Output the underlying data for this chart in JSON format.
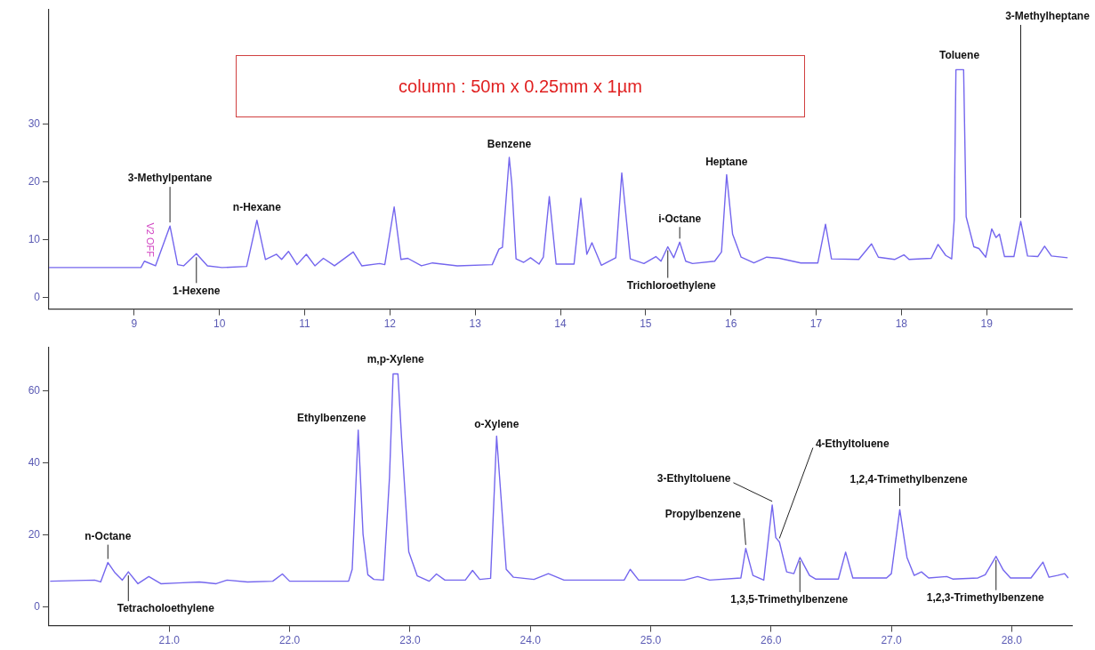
{
  "chart_data": [
    {
      "type": "line",
      "color": "#7466ee",
      "xlim": [
        8,
        20
      ],
      "ylim": [
        -2,
        50
      ],
      "xticks": [
        9,
        10,
        11,
        12,
        13,
        14,
        15,
        16,
        17,
        18,
        19
      ],
      "yticks": [
        0,
        10,
        20,
        30
      ],
      "grid": false,
      "legend": false,
      "marker": "none",
      "line_style": "solid",
      "x": [
        8.0,
        9.08,
        9.12,
        9.25,
        9.42,
        9.51,
        9.58,
        9.73,
        9.86,
        10.03,
        10.32,
        10.44,
        10.54,
        10.67,
        10.73,
        10.81,
        10.91,
        11.02,
        11.12,
        11.22,
        11.35,
        11.57,
        11.67,
        11.88,
        11.94,
        12.05,
        12.13,
        12.21,
        12.37,
        12.5,
        12.79,
        13.2,
        13.28,
        13.32,
        13.4,
        13.43,
        13.48,
        13.57,
        13.65,
        13.75,
        13.8,
        13.87,
        13.95,
        14.16,
        14.24,
        14.31,
        14.37,
        14.48,
        14.65,
        14.72,
        14.82,
        14.98,
        15.12,
        15.18,
        15.26,
        15.33,
        15.4,
        15.47,
        15.55,
        15.81,
        15.89,
        15.95,
        16.02,
        16.12,
        16.27,
        16.42,
        16.57,
        16.82,
        17.02,
        17.11,
        17.18,
        17.5,
        17.65,
        17.73,
        17.92,
        18.03,
        18.09,
        18.35,
        18.43,
        18.52,
        18.59,
        18.62,
        18.64,
        18.73,
        18.76,
        18.85,
        18.91,
        18.99,
        19.06,
        19.11,
        19.15,
        19.21,
        19.32,
        19.4,
        19.48,
        19.6,
        19.68,
        19.76,
        19.95
      ],
      "values": [
        5.2,
        5.2,
        6.3,
        5.5,
        12.4,
        5.7,
        5.5,
        7.6,
        5.5,
        5.2,
        5.4,
        13.4,
        6.6,
        7.5,
        6.6,
        8.0,
        5.7,
        7.5,
        5.5,
        6.8,
        5.5,
        7.9,
        5.5,
        5.9,
        5.7,
        15.7,
        6.6,
        6.8,
        5.5,
        6.0,
        5.5,
        5.7,
        8.4,
        8.7,
        24.3,
        19.7,
        6.7,
        6.1,
        6.9,
        5.8,
        7.0,
        17.5,
        5.8,
        5.8,
        17.2,
        7.5,
        9.5,
        5.6,
        6.9,
        21.6,
        6.7,
        5.9,
        7.1,
        6.3,
        8.8,
        6.9,
        9.6,
        6.3,
        5.9,
        6.3,
        7.9,
        21.3,
        11.0,
        7.0,
        6.0,
        7.0,
        6.8,
        6.0,
        6.0,
        12.7,
        6.7,
        6.6,
        9.3,
        7.0,
        6.6,
        7.4,
        6.6,
        6.8,
        9.2,
        7.3,
        6.7,
        13.5,
        39.5,
        39.5,
        14.0,
        8.8,
        8.5,
        7.0,
        11.9,
        10.4,
        11.0,
        7.1,
        7.1,
        13.2,
        7.2,
        7.1,
        8.9,
        7.2,
        6.9
      ],
      "annotations": [
        "column : 50m x 0.25mm x 1µm",
        {
          "text": "V2 OFF",
          "x": 9.12,
          "y": 6.3
        },
        {
          "text": "3-Methylpentane",
          "x": 9.42,
          "y": 12.4
        },
        {
          "text": "1-Hexene",
          "x": 9.73,
          "y": 7.6
        },
        {
          "text": "n-Hexane",
          "x": 10.44,
          "y": 13.4
        },
        {
          "text": "Benzene",
          "x": 13.4,
          "y": 24.3
        },
        {
          "text": "i-Octane",
          "x": 15.4,
          "y": 9.6
        },
        {
          "text": "Trichloroethylene",
          "x": 15.26,
          "y": 8.8
        },
        {
          "text": "Heptane",
          "x": 15.95,
          "y": 21.3
        },
        {
          "text": "Toluene",
          "x": 18.68,
          "y": 39.5
        },
        {
          "text": "3-Methylheptane",
          "x": 19.4,
          "y": 13.2
        }
      ]
    },
    {
      "type": "line",
      "color": "#7466ee",
      "xlim": [
        20,
        28.5
      ],
      "ylim": [
        -5.25,
        72
      ],
      "xticks": [
        {
          "value": 21,
          "label": "21.0"
        },
        {
          "value": 22,
          "label": "22.0"
        },
        {
          "value": 23,
          "label": "23.0"
        },
        {
          "value": 24,
          "label": "24.0"
        },
        {
          "value": 25,
          "label": "25.0"
        },
        {
          "value": 26,
          "label": "26.0"
        },
        {
          "value": 27,
          "label": "27.0"
        },
        {
          "value": 28,
          "label": "28.0"
        }
      ],
      "yticks": [
        0,
        20,
        40,
        60
      ],
      "grid": false,
      "legend": false,
      "marker": "none",
      "line_style": "solid",
      "x": [
        20.01,
        20.38,
        20.43,
        20.49,
        20.55,
        20.61,
        20.66,
        20.74,
        20.83,
        20.93,
        21.07,
        21.25,
        21.39,
        21.48,
        21.65,
        21.86,
        21.94,
        22.0,
        22.49,
        22.52,
        22.57,
        22.61,
        22.65,
        22.7,
        22.78,
        22.83,
        22.86,
        22.9,
        22.93,
        22.99,
        23.06,
        23.16,
        23.22,
        23.29,
        23.46,
        23.52,
        23.58,
        23.67,
        23.72,
        23.8,
        23.86,
        24.03,
        24.15,
        24.28,
        24.78,
        24.83,
        24.9,
        25.28,
        25.39,
        25.49,
        25.75,
        25.79,
        25.85,
        25.94,
        26.01,
        26.04,
        26.07,
        26.13,
        26.19,
        26.24,
        26.32,
        26.37,
        26.56,
        26.62,
        26.68,
        26.96,
        27.0,
        27.07,
        27.13,
        27.19,
        27.25,
        27.31,
        27.46,
        27.51,
        27.72,
        27.78,
        27.87,
        27.93,
        27.99,
        28.16,
        28.26,
        28.31,
        28.38,
        28.44,
        28.47
      ],
      "values": [
        7.1,
        7.4,
        6.9,
        12.3,
        9.4,
        7.4,
        9.7,
        6.4,
        8.4,
        6.4,
        6.6,
        6.9,
        6.4,
        7.4,
        6.9,
        7.1,
        9.1,
        7.1,
        7.1,
        10.4,
        49.1,
        20.2,
        8.9,
        7.6,
        7.4,
        36,
        64.7,
        64.7,
        46.9,
        15.3,
        8.6,
        7.1,
        9.1,
        7.4,
        7.4,
        10.1,
        7.6,
        7.9,
        47.4,
        10.4,
        8.2,
        7.6,
        9.2,
        7.4,
        7.4,
        10.4,
        7.4,
        7.4,
        8.4,
        7.4,
        8.0,
        16.2,
        8.7,
        7.4,
        28.3,
        19.2,
        18.0,
        9.7,
        9.2,
        13.7,
        8.7,
        7.7,
        7.7,
        15.2,
        8.0,
        8.0,
        9.2,
        27.0,
        13.7,
        8.7,
        9.7,
        8.0,
        8.4,
        7.7,
        8.0,
        8.9,
        14.0,
        10.2,
        8.0,
        8.0,
        12.4,
        8.2,
        8.7,
        9.2,
        8.0
      ],
      "annotations": [
        {
          "text": "n-Octane",
          "x": 20.49,
          "y": 12.3
        },
        {
          "text": "Tetracholoethylene",
          "x": 20.66,
          "y": 9.7
        },
        {
          "text": "Ethylbenzene",
          "x": 22.57,
          "y": 49.1
        },
        {
          "text": "m,p-Xylene",
          "x": 22.88,
          "y": 64.7
        },
        {
          "text": "o-Xylene",
          "x": 23.72,
          "y": 47.4
        },
        {
          "text": "Propylbenzene",
          "x": 25.79,
          "y": 16.2
        },
        {
          "text": "3-Ethyltoluene",
          "x": 26.01,
          "y": 28.3
        },
        {
          "text": "4-Ethyltoluene",
          "x": 26.07,
          "y": 18.0
        },
        {
          "text": "1,2,4-Trimethylbenzene",
          "x": 27.07,
          "y": 27.0
        },
        {
          "text": "1,3,5-Trimethylbenzene",
          "x": 26.24,
          "y": 13.7
        },
        {
          "text": "1,2,3-Trimethylbenzene",
          "x": 27.87,
          "y": 14.0
        }
      ]
    }
  ]
}
